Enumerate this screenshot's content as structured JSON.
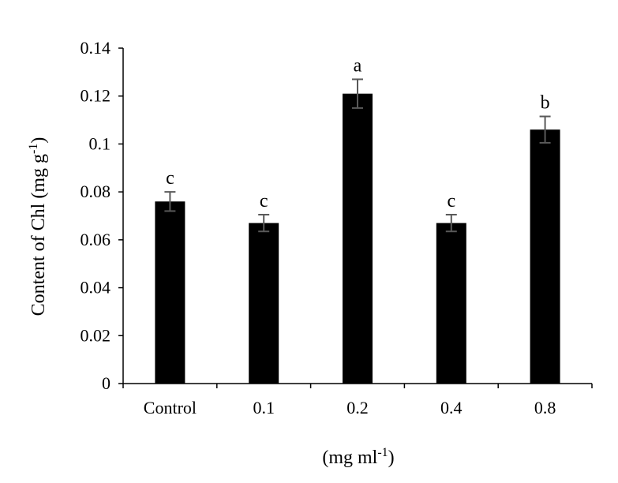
{
  "chart_data": {
    "type": "bar",
    "categories": [
      "Control",
      "0.1",
      "0.2",
      "0.4",
      "0.8"
    ],
    "values": [
      0.076,
      0.067,
      0.121,
      0.067,
      0.106
    ],
    "errors": [
      0.004,
      0.0035,
      0.006,
      0.0035,
      0.0055
    ],
    "significance": [
      "c",
      "c",
      "a",
      "c",
      "b"
    ],
    "ylabel": "Content of Chl (mg g",
    "ylabel_sup": "-1",
    "ylabel_close": ")",
    "xlabel": "(mg ml",
    "xlabel_sup": "-1",
    "xlabel_close": ")",
    "ylim": [
      0,
      0.14
    ],
    "yticks": [
      "0",
      "0.02",
      "0.04",
      "0.06",
      "0.08",
      "0.1",
      "0.12",
      "0.14"
    ],
    "grid": false,
    "colors": {
      "bar": "#000000",
      "error": "#595959",
      "axis": "#000000"
    }
  }
}
